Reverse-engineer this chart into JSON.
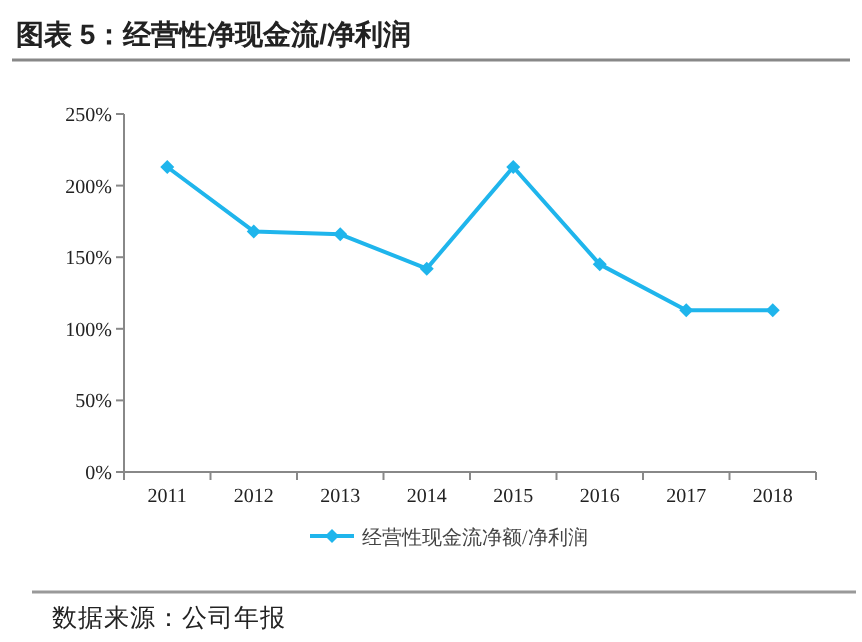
{
  "chart_data": {
    "type": "line",
    "title": "图表 5：经营性净现金流/净利润",
    "categories": [
      "2011",
      "2012",
      "2013",
      "2014",
      "2015",
      "2016",
      "2017",
      "2018"
    ],
    "series": [
      {
        "name": "经营性现金流净额/净利润",
        "color": "#1fb5ec",
        "values": [
          213,
          168,
          166,
          142,
          213,
          145,
          113,
          113
        ]
      }
    ],
    "ylim": [
      0,
      250
    ],
    "yticks": [
      {
        "value": 0,
        "label": "0%"
      },
      {
        "value": 50,
        "label": "50%"
      },
      {
        "value": 100,
        "label": "100%"
      },
      {
        "value": 150,
        "label": "150%"
      },
      {
        "value": 200,
        "label": "200%"
      },
      {
        "value": 250,
        "label": "250%"
      }
    ],
    "marker": "diamond",
    "legend": "bottom",
    "grid": false,
    "annotations": [
      "数据来源：公司年报"
    ]
  }
}
